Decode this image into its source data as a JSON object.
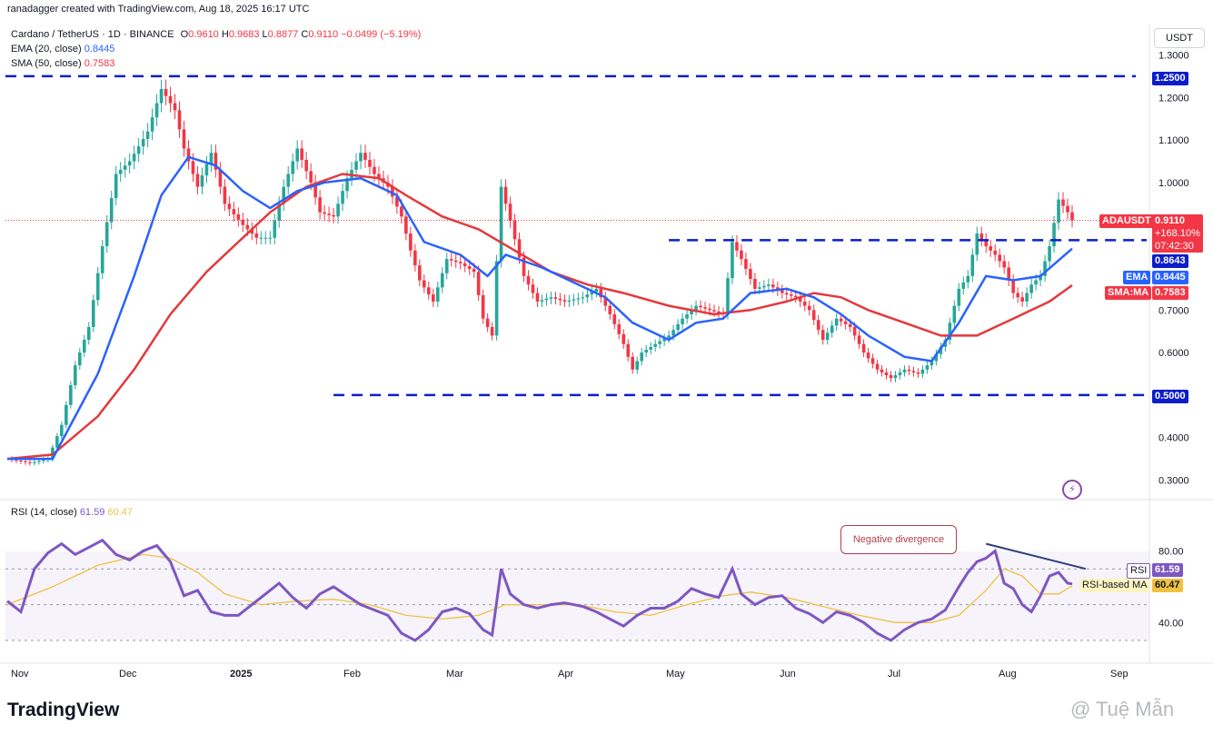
{
  "credit": "ranadagger created with TradingView.com, Aug 18, 2025 16:17 UTC",
  "symbol_line": "Cardano / TetherUS · 1D · BINANCE",
  "ohlc": {
    "o_label": "O",
    "o": "0.9610",
    "h_label": "H",
    "h": "0.9683",
    "l_label": "L",
    "l": "0.8877",
    "c_label": "C",
    "c": "0.9110",
    "change": "−0.0499 (−5.19%)"
  },
  "ema_legend": {
    "label": "EMA (20, close)",
    "value": "0.8445"
  },
  "sma_legend": {
    "label": "SMA (50, close)",
    "value": "0.7583"
  },
  "rsi_legend": {
    "label": "RSI (14, close)",
    "value": "61.59",
    "ma_value": "60.47"
  },
  "currency_button": "USDT",
  "price_tags": {
    "symbol": "ADAUSDT",
    "price": "0.9110",
    "change_pct": "+168.10%",
    "countdown": "07:42:30",
    "level_resistance": "0.8643",
    "ema_label": "EMA",
    "ema": "0.8445",
    "sma_label": "SMA:MA",
    "sma": "0.7583",
    "level_top": "1.2500",
    "level_bottom": "0.5000",
    "rsi_label": "RSI",
    "rsi": "61.59",
    "rsi_ma_label": "RSI-based MA",
    "rsi_ma": "60.47"
  },
  "annotation": "Negative divergence",
  "branding": {
    "logo": "TradingView",
    "watermark": "@ Tuệ Mẫn"
  },
  "colors": {
    "up": "#26a69a",
    "down": "#f23645",
    "ema": "#2962ff",
    "sma": "#e5383b",
    "rsi": "#7e57c2",
    "rsi_ma": "#f0c040",
    "hline": "#0d1dc9",
    "trend": "#2a3f7a"
  },
  "chart_data": {
    "type": "candlestick",
    "symbol": "ADAUSDT",
    "timeframe": "1D",
    "price_axis": {
      "ticks": [
        "1.3000",
        "1.2000",
        "1.1000",
        "1.0000",
        "0.7000",
        "0.6000",
        "0.4000",
        "0.3000"
      ],
      "range": [
        0.27,
        1.33
      ]
    },
    "time_axis": {
      "labels": [
        "Nov",
        "Dec",
        "2025",
        "Feb",
        "Mar",
        "Apr",
        "May",
        "Jun",
        "Jul",
        "Aug",
        "Sep"
      ]
    },
    "horizontal_levels": [
      1.25,
      0.8643,
      0.5
    ],
    "close_path": [
      [
        0,
        0.35
      ],
      [
        5,
        0.34
      ],
      [
        9,
        0.35
      ],
      [
        12,
        0.43
      ],
      [
        15,
        0.57
      ],
      [
        18,
        0.66
      ],
      [
        21,
        0.85
      ],
      [
        24,
        1.02
      ],
      [
        27,
        1.05
      ],
      [
        31,
        1.12
      ],
      [
        34,
        1.22
      ],
      [
        37,
        1.17
      ],
      [
        39,
        1.08
      ],
      [
        42,
        0.99
      ],
      [
        45,
        1.07
      ],
      [
        48,
        0.95
      ],
      [
        52,
        0.9
      ],
      [
        55,
        0.87
      ],
      [
        58,
        0.87
      ],
      [
        61,
        0.99
      ],
      [
        64,
        1.08
      ],
      [
        67,
        1.0
      ],
      [
        69,
        0.93
      ],
      [
        72,
        0.92
      ],
      [
        75,
        1.01
      ],
      [
        78,
        1.07
      ],
      [
        81,
        1.02
      ],
      [
        84,
        0.99
      ],
      [
        87,
        0.92
      ],
      [
        89,
        0.84
      ],
      [
        91,
        0.77
      ],
      [
        94,
        0.72
      ],
      [
        97,
        0.82
      ],
      [
        100,
        0.81
      ],
      [
        103,
        0.79
      ],
      [
        105,
        0.68
      ],
      [
        107,
        0.64
      ],
      [
        109,
        0.99
      ],
      [
        111,
        0.91
      ],
      [
        114,
        0.78
      ],
      [
        117,
        0.72
      ],
      [
        120,
        0.73
      ],
      [
        123,
        0.72
      ],
      [
        127,
        0.73
      ],
      [
        130,
        0.75
      ],
      [
        133,
        0.69
      ],
      [
        136,
        0.62
      ],
      [
        138,
        0.56
      ],
      [
        140,
        0.6
      ],
      [
        143,
        0.62
      ],
      [
        146,
        0.64
      ],
      [
        149,
        0.68
      ],
      [
        152,
        0.71
      ],
      [
        155,
        0.7
      ],
      [
        158,
        0.69
      ],
      [
        160,
        0.86
      ],
      [
        162,
        0.82
      ],
      [
        165,
        0.75
      ],
      [
        168,
        0.76
      ],
      [
        171,
        0.74
      ],
      [
        174,
        0.73
      ],
      [
        177,
        0.7
      ],
      [
        180,
        0.63
      ],
      [
        183,
        0.68
      ],
      [
        186,
        0.66
      ],
      [
        189,
        0.6
      ],
      [
        192,
        0.56
      ],
      [
        195,
        0.54
      ],
      [
        198,
        0.56
      ],
      [
        201,
        0.55
      ],
      [
        204,
        0.58
      ],
      [
        207,
        0.63
      ],
      [
        210,
        0.75
      ],
      [
        212,
        0.78
      ],
      [
        214,
        0.88
      ],
      [
        216,
        0.85
      ],
      [
        218,
        0.83
      ],
      [
        220,
        0.8
      ],
      [
        222,
        0.74
      ],
      [
        224,
        0.72
      ],
      [
        226,
        0.76
      ],
      [
        228,
        0.78
      ],
      [
        230,
        0.85
      ],
      [
        232,
        0.96
      ],
      [
        234,
        0.93
      ],
      [
        235,
        0.911
      ]
    ],
    "ema20_path": [
      [
        0,
        0.35
      ],
      [
        10,
        0.35
      ],
      [
        20,
        0.55
      ],
      [
        28,
        0.78
      ],
      [
        34,
        0.97
      ],
      [
        40,
        1.06
      ],
      [
        46,
        1.04
      ],
      [
        52,
        0.98
      ],
      [
        58,
        0.94
      ],
      [
        64,
        0.98
      ],
      [
        70,
        1.0
      ],
      [
        78,
        1.01
      ],
      [
        86,
        0.97
      ],
      [
        92,
        0.86
      ],
      [
        100,
        0.83
      ],
      [
        106,
        0.78
      ],
      [
        110,
        0.83
      ],
      [
        118,
        0.8
      ],
      [
        126,
        0.76
      ],
      [
        132,
        0.73
      ],
      [
        138,
        0.67
      ],
      [
        146,
        0.63
      ],
      [
        152,
        0.67
      ],
      [
        158,
        0.68
      ],
      [
        164,
        0.74
      ],
      [
        172,
        0.75
      ],
      [
        178,
        0.73
      ],
      [
        184,
        0.69
      ],
      [
        190,
        0.64
      ],
      [
        198,
        0.59
      ],
      [
        204,
        0.58
      ],
      [
        210,
        0.67
      ],
      [
        216,
        0.78
      ],
      [
        222,
        0.77
      ],
      [
        228,
        0.78
      ],
      [
        235,
        0.8445
      ]
    ],
    "sma50_path": [
      [
        0,
        0.35
      ],
      [
        10,
        0.36
      ],
      [
        20,
        0.45
      ],
      [
        28,
        0.56
      ],
      [
        36,
        0.69
      ],
      [
        44,
        0.79
      ],
      [
        52,
        0.87
      ],
      [
        58,
        0.93
      ],
      [
        66,
        0.99
      ],
      [
        74,
        1.02
      ],
      [
        82,
        1.01
      ],
      [
        88,
        0.97
      ],
      [
        96,
        0.92
      ],
      [
        104,
        0.89
      ],
      [
        112,
        0.84
      ],
      [
        120,
        0.79
      ],
      [
        128,
        0.76
      ],
      [
        136,
        0.74
      ],
      [
        146,
        0.71
      ],
      [
        156,
        0.69
      ],
      [
        164,
        0.7
      ],
      [
        172,
        0.72
      ],
      [
        178,
        0.74
      ],
      [
        184,
        0.73
      ],
      [
        190,
        0.7
      ],
      [
        198,
        0.67
      ],
      [
        206,
        0.64
      ],
      [
        214,
        0.64
      ],
      [
        222,
        0.68
      ],
      [
        230,
        0.72
      ],
      [
        235,
        0.7583
      ]
    ],
    "rsi": {
      "ticks": [
        "80.00",
        "40.00"
      ],
      "overbought": 70,
      "oversold": 30,
      "mid": 50,
      "rsi_path": [
        [
          0,
          52
        ],
        [
          3,
          46
        ],
        [
          6,
          70
        ],
        [
          9,
          79
        ],
        [
          12,
          84
        ],
        [
          15,
          78
        ],
        [
          18,
          82
        ],
        [
          21,
          86
        ],
        [
          24,
          78
        ],
        [
          27,
          75
        ],
        [
          30,
          80
        ],
        [
          33,
          83
        ],
        [
          36,
          74
        ],
        [
          39,
          55
        ],
        [
          42,
          58
        ],
        [
          45,
          46
        ],
        [
          48,
          44
        ],
        [
          51,
          44
        ],
        [
          54,
          50
        ],
        [
          57,
          56
        ],
        [
          60,
          62
        ],
        [
          63,
          54
        ],
        [
          66,
          48
        ],
        [
          69,
          56
        ],
        [
          72,
          60
        ],
        [
          75,
          55
        ],
        [
          78,
          50
        ],
        [
          81,
          47
        ],
        [
          84,
          44
        ],
        [
          87,
          34
        ],
        [
          90,
          30
        ],
        [
          93,
          36
        ],
        [
          96,
          46
        ],
        [
          99,
          48
        ],
        [
          102,
          45
        ],
        [
          105,
          36
        ],
        [
          107,
          33
        ],
        [
          109,
          70
        ],
        [
          111,
          56
        ],
        [
          114,
          50
        ],
        [
          117,
          48
        ],
        [
          120,
          50
        ],
        [
          123,
          51
        ],
        [
          127,
          49
        ],
        [
          130,
          46
        ],
        [
          133,
          42
        ],
        [
          136,
          38
        ],
        [
          139,
          44
        ],
        [
          142,
          48
        ],
        [
          145,
          48
        ],
        [
          148,
          52
        ],
        [
          151,
          59
        ],
        [
          154,
          56
        ],
        [
          157,
          54
        ],
        [
          160,
          70
        ],
        [
          162,
          56
        ],
        [
          165,
          50
        ],
        [
          168,
          54
        ],
        [
          171,
          55
        ],
        [
          174,
          48
        ],
        [
          177,
          45
        ],
        [
          180,
          40
        ],
        [
          183,
          46
        ],
        [
          186,
          44
        ],
        [
          189,
          40
        ],
        [
          192,
          34
        ],
        [
          195,
          30
        ],
        [
          198,
          36
        ],
        [
          201,
          40
        ],
        [
          204,
          42
        ],
        [
          207,
          47
        ],
        [
          210,
          60
        ],
        [
          212,
          68
        ],
        [
          214,
          74
        ],
        [
          216,
          76
        ],
        [
          218,
          80
        ],
        [
          220,
          62
        ],
        [
          222,
          59
        ],
        [
          224,
          50
        ],
        [
          226,
          46
        ],
        [
          228,
          55
        ],
        [
          230,
          66
        ],
        [
          232,
          68
        ],
        [
          234,
          62
        ],
        [
          235,
          61.59
        ]
      ],
      "ma_path": [
        [
          0,
          50
        ],
        [
          10,
          60
        ],
        [
          20,
          72
        ],
        [
          30,
          78
        ],
        [
          36,
          76
        ],
        [
          42,
          68
        ],
        [
          48,
          56
        ],
        [
          56,
          50
        ],
        [
          64,
          52
        ],
        [
          72,
          53
        ],
        [
          80,
          50
        ],
        [
          88,
          44
        ],
        [
          96,
          42
        ],
        [
          104,
          44
        ],
        [
          110,
          50
        ],
        [
          118,
          50
        ],
        [
          126,
          50
        ],
        [
          134,
          46
        ],
        [
          142,
          44
        ],
        [
          150,
          50
        ],
        [
          158,
          55
        ],
        [
          164,
          57
        ],
        [
          172,
          54
        ],
        [
          180,
          49
        ],
        [
          188,
          44
        ],
        [
          196,
          40
        ],
        [
          204,
          40
        ],
        [
          210,
          44
        ],
        [
          216,
          58
        ],
        [
          220,
          70
        ],
        [
          224,
          66
        ],
        [
          228,
          56
        ],
        [
          232,
          56
        ],
        [
          235,
          60.47
        ]
      ],
      "divergence_line": [
        [
          216,
          84
        ],
        [
          238,
          70
        ]
      ]
    }
  }
}
